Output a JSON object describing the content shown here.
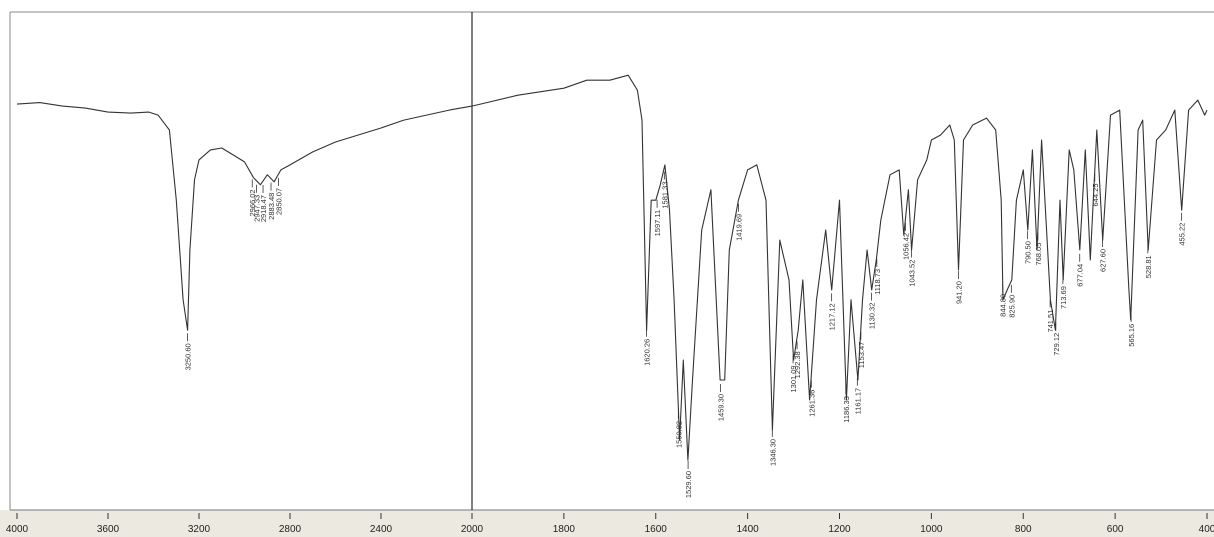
{
  "chart_data": [
    {
      "type": "line",
      "color": "#333333",
      "xlim": [
        4000,
        2000
      ],
      "ylim": [
        0,
        100
      ],
      "xticks": [
        4000,
        3600,
        3200,
        2800,
        2400,
        2000
      ],
      "x": [
        4000,
        3900,
        3800,
        3700,
        3600,
        3500,
        3420,
        3380,
        3330,
        3300,
        3270,
        3250,
        3240,
        3220,
        3200,
        3150,
        3100,
        3050,
        3000,
        2960,
        2930,
        2900,
        2870,
        2840,
        2800,
        2700,
        2600,
        2500,
        2400,
        2300,
        2200,
        2100,
        2000
      ],
      "values": [
        81.5,
        81.8,
        81.1,
        80.7,
        79.9,
        79.7,
        79.9,
        79.3,
        76.3,
        62.2,
        42.2,
        36.1,
        52.2,
        66.3,
        70.3,
        72.3,
        72.7,
        71.3,
        69.9,
        66.7,
        65.3,
        67.3,
        65.9,
        68.3,
        69.3,
        71.9,
        73.9,
        75.3,
        76.7,
        78.3,
        79.3,
        80.3,
        81.1
      ],
      "peaks": [
        {
          "x": 3250.6,
          "label": "3250.60"
        },
        {
          "x": 2966.02,
          "label": "2966.02"
        },
        {
          "x": 2947.33,
          "label": "2947.33"
        },
        {
          "x": 2918.47,
          "label": "2918.47"
        },
        {
          "x": 2883.48,
          "label": "2883.48"
        },
        {
          "x": 2850.07,
          "label": "2850.07"
        }
      ]
    },
    {
      "type": "line",
      "color": "#333333",
      "xlim": [
        2000,
        400
      ],
      "ylim": [
        0,
        100
      ],
      "xticks": [
        1800,
        1600,
        1400,
        1200,
        1000,
        800,
        600,
        400
      ],
      "x": [
        2000,
        1900,
        1800,
        1750,
        1700,
        1660,
        1640,
        1630,
        1620,
        1610,
        1600,
        1590,
        1580,
        1570,
        1560,
        1548,
        1540,
        1530,
        1520,
        1500,
        1480,
        1460,
        1450,
        1440,
        1420,
        1400,
        1380,
        1360,
        1346,
        1330,
        1310,
        1300,
        1290,
        1280,
        1265,
        1250,
        1230,
        1217,
        1200,
        1185,
        1175,
        1160,
        1150,
        1140,
        1130,
        1120,
        1110,
        1090,
        1070,
        1060,
        1050,
        1043,
        1030,
        1010,
        1000,
        980,
        960,
        950,
        941,
        930,
        910,
        880,
        860,
        848,
        844,
        835,
        825,
        815,
        800,
        790,
        780,
        770,
        760,
        741,
        730,
        720,
        713,
        700,
        690,
        677,
        665,
        654,
        640,
        627,
        610,
        590,
        570,
        566,
        550,
        540,
        528,
        510,
        490,
        470,
        455,
        440,
        420,
        405,
        400
      ],
      "values": [
        81.1,
        83.3,
        84.7,
        86.3,
        86.3,
        87.3,
        84.3,
        78.3,
        36.1,
        62.2,
        62.2,
        65.3,
        69.3,
        60.2,
        42.2,
        14.1,
        30.1,
        10.0,
        26.1,
        56.2,
        64.3,
        26.1,
        26.1,
        52.2,
        62.2,
        68.3,
        69.3,
        62.2,
        16.1,
        54.2,
        46.2,
        30.1,
        36.1,
        46.2,
        22.1,
        42.2,
        56.2,
        44.2,
        62.2,
        22.1,
        42.2,
        26.1,
        42.2,
        52.2,
        44.2,
        50.2,
        58.2,
        67.3,
        68.3,
        55.2,
        64.3,
        52.2,
        66.3,
        70.3,
        74.3,
        75.3,
        77.3,
        74.3,
        48.2,
        74.3,
        77.3,
        78.7,
        76.3,
        62.2,
        42.2,
        44.2,
        46.2,
        62.2,
        68.3,
        56.2,
        72.3,
        52.2,
        74.3,
        42.2,
        36.1,
        62.2,
        46.2,
        72.3,
        68.3,
        52.2,
        72.3,
        50.2,
        76.3,
        54.2,
        79.3,
        80.3,
        44.2,
        38.2,
        76.3,
        78.3,
        52.2,
        74.3,
        76.3,
        80.3,
        60.2,
        80.3,
        82.3,
        79.3,
        80.3
      ],
      "peaks": [
        {
          "x": 1620.26,
          "label": "1620.26"
        },
        {
          "x": 1597.11,
          "label": "1597.11"
        },
        {
          "x": 1581.33,
          "label": "1581.33"
        },
        {
          "x": 1550.82,
          "label": "1550.82"
        },
        {
          "x": 1529.6,
          "label": "1529.60"
        },
        {
          "x": 1459.3,
          "label": "1459.30"
        },
        {
          "x": 1419.69,
          "label": "1419.69"
        },
        {
          "x": 1346.3,
          "label": "1346.30"
        },
        {
          "x": 1301.09,
          "label": "1301.09"
        },
        {
          "x": 1292.38,
          "label": "1292.38"
        },
        {
          "x": 1261.36,
          "label": "1261.36"
        },
        {
          "x": 1217.12,
          "label": "1217.12"
        },
        {
          "x": 1186.33,
          "label": "1186.33"
        },
        {
          "x": 1161.17,
          "label": "1161.17"
        },
        {
          "x": 1153.47,
          "label": "1153.47"
        },
        {
          "x": 1130.32,
          "label": "1130.32"
        },
        {
          "x": 1118.73,
          "label": "1118.73"
        },
        {
          "x": 1056.42,
          "label": "1056.42"
        },
        {
          "x": 1043.52,
          "label": "1043.52"
        },
        {
          "x": 941.2,
          "label": "941.20"
        },
        {
          "x": 844.8,
          "label": "844.80"
        },
        {
          "x": 825.9,
          "label": "825.90"
        },
        {
          "x": 790.5,
          "label": "790.50"
        },
        {
          "x": 768.05,
          "label": "768.05"
        },
        {
          "x": 741.51,
          "label": "741.51"
        },
        {
          "x": 729.12,
          "label": "729.12"
        },
        {
          "x": 713.69,
          "label": "713.69"
        },
        {
          "x": 677.04,
          "label": "677.04"
        },
        {
          "x": 644.25,
          "label": "644.25"
        },
        {
          "x": 627.6,
          "label": "627.60"
        },
        {
          "x": 565.16,
          "label": "565.16"
        },
        {
          "x": 528.81,
          "label": "528.81"
        },
        {
          "x": 455.22,
          "label": "455.22"
        }
      ]
    }
  ]
}
